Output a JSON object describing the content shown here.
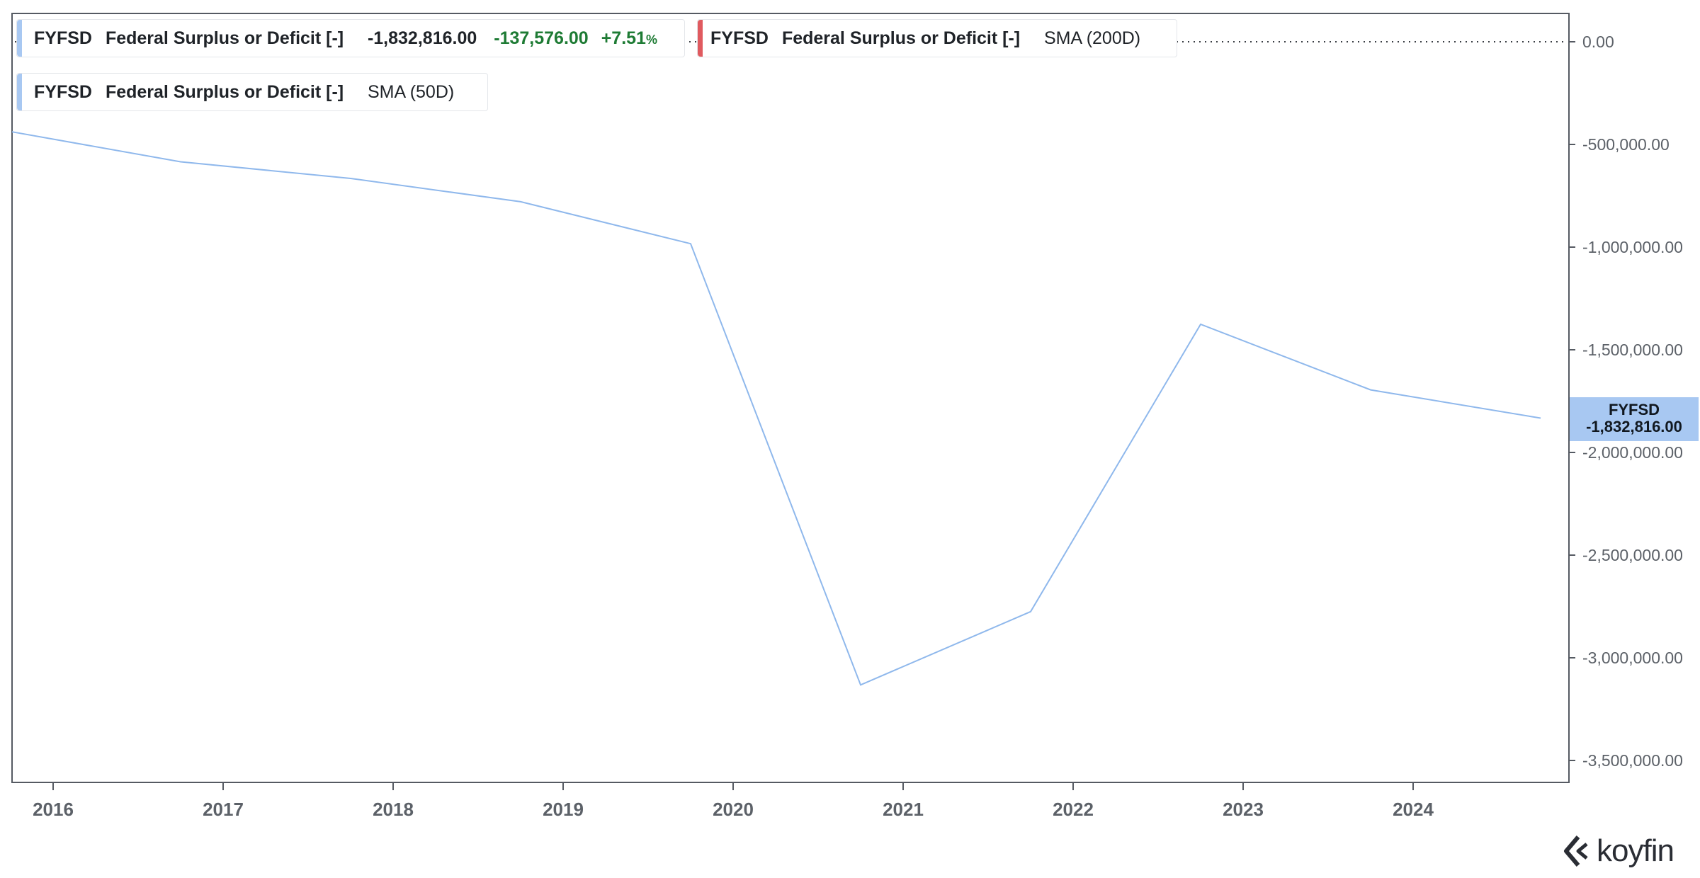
{
  "legend": [
    {
      "ticker": "FYFSD",
      "name": "Federal Surplus or Deficit [-]",
      "value": "-1,832,816.00",
      "change": "-137,576.00",
      "change_pct": "+7.51",
      "pct_sign": "%",
      "stripe_color": "#a8c8f2",
      "change_color": "#1e7b34"
    },
    {
      "ticker": "FYFSD",
      "name": "Federal Surplus or Deficit [-]",
      "study": "SMA (200D)",
      "stripe_color": "#e05a5f"
    },
    {
      "ticker": "FYFSD",
      "name": "Federal Surplus or Deficit [-]",
      "study": "SMA (50D)",
      "stripe_color": "#a8c8f2"
    }
  ],
  "price_tag": {
    "ticker": "FYFSD",
    "value": "-1,832,816.00"
  },
  "brand": "koyfin",
  "colors": {
    "line": "#8fb8ec",
    "axis": "#555a62",
    "tick_text": "#5c6168"
  },
  "chart_data": {
    "type": "line",
    "x_tick_labels": [
      "2016",
      "2017",
      "2018",
      "2019",
      "2020",
      "2021",
      "2022",
      "2023",
      "2024"
    ],
    "y_tick_labels": [
      "0.00",
      "-500,000.00",
      "-1,000,000.00",
      "-1,500,000.00",
      "-2,000,000.00",
      "-2,500,000.00",
      "-3,000,000.00",
      "-3,500,000.00"
    ],
    "y_ticks": [
      0,
      -500000,
      -1000000,
      -1500000,
      -2000000,
      -2500000,
      -3000000,
      -3500000
    ],
    "ylim": [
      -3600000,
      100000
    ],
    "xlim": [
      2015.75,
      2025.0
    ],
    "reference_line": 0,
    "series": [
      {
        "x": [
          2015.75,
          2016.75,
          2017.75,
          2018.75,
          2019.75,
          2020.75,
          2021.75,
          2022.75,
          2023.75,
          2024.75
        ],
        "values": [
          -438496,
          -584651,
          -665446,
          -779137,
          -983594,
          -3131917,
          -2775298,
          -1375905,
          -1695240,
          -1832816
        ]
      }
    ]
  }
}
